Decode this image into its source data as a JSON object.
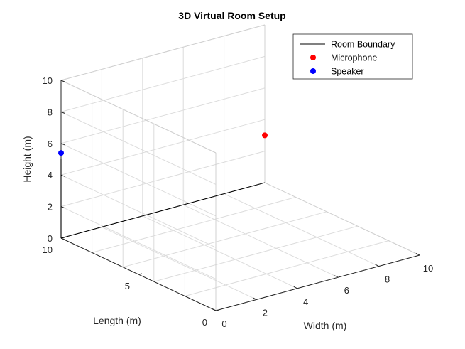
{
  "chart_data": {
    "type": "scatter3d",
    "title": "3D Virtual Room Setup",
    "xlabel": "Width (m)",
    "ylabel": "Length (m)",
    "zlabel": "Height (m)",
    "xlim": [
      0,
      10
    ],
    "ylim": [
      0,
      10
    ],
    "zlim": [
      0,
      10
    ],
    "x_ticks": [
      "0",
      "2",
      "4",
      "6",
      "8",
      "10"
    ],
    "y_ticks": [
      "0",
      "5",
      "10"
    ],
    "z_ticks": [
      "0",
      "2",
      "4",
      "6",
      "8",
      "10"
    ],
    "grid": true,
    "legend_position": "top-right",
    "series": [
      {
        "name": "Room Boundary",
        "kind": "line",
        "color": "#000000",
        "segments": [
          [
            [
              0,
              10,
              0
            ],
            [
              10,
              10,
              0
            ]
          ],
          [
            [
              0,
              10,
              0
            ],
            [
              0,
              10,
              5
            ]
          ]
        ]
      },
      {
        "name": "Microphone",
        "kind": "point",
        "color": "#ff0000",
        "points": [
          [
            10,
            10,
            3
          ]
        ]
      },
      {
        "name": "Speaker",
        "kind": "point",
        "color": "#0000ff",
        "points": [
          [
            0,
            10,
            5.4
          ]
        ]
      }
    ]
  }
}
